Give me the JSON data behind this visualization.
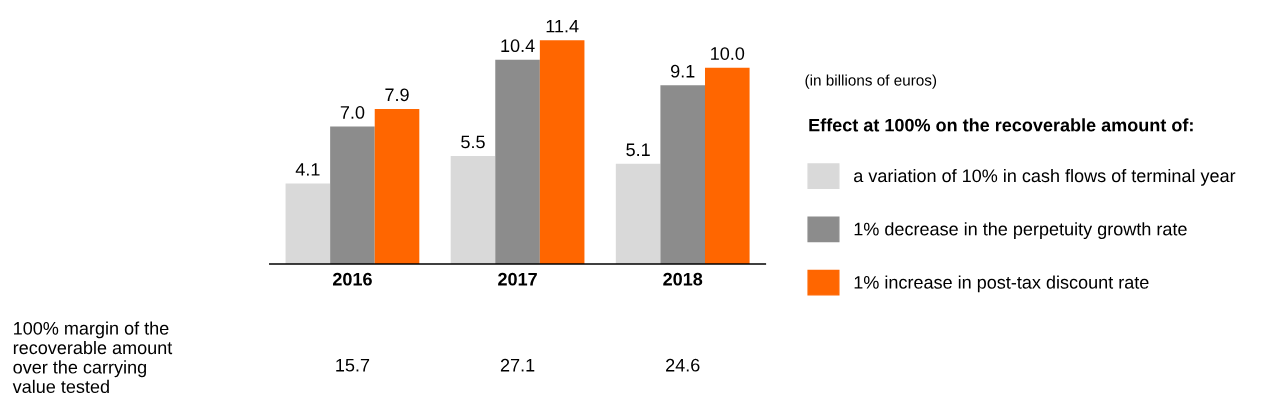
{
  "chart_data": {
    "type": "bar",
    "categories": [
      "2016",
      "2017",
      "2018"
    ],
    "series": [
      {
        "name": "a variation of 10% in cash flows of terminal year",
        "color": "#d9d9d9",
        "values": [
          4.1,
          5.5,
          5.1
        ],
        "value_labels": [
          "4.1",
          "5.5",
          "5.1"
        ]
      },
      {
        "name": "1% decrease in the perpetuity growth rate",
        "color": "#8c8c8c",
        "values": [
          7.0,
          10.4,
          9.1
        ],
        "value_labels": [
          "7.0",
          "10.4",
          "9.1"
        ]
      },
      {
        "name": "1% increase in post-tax discount rate",
        "color": "#ff6600",
        "values": [
          7.9,
          11.4,
          10.0
        ],
        "value_labels": [
          "7.9",
          "11.4",
          "10.0"
        ]
      }
    ],
    "grid": false,
    "legend": "right",
    "tick_labels": "x",
    "legend_title": "Effect at 100% on the recoverable amount of:",
    "annotations": [
      "(in billions of euros)",
      "100% margin of the\nrecoverable amount\nover the carrying\nvalue tested",
      "15.7",
      "27.1",
      "24.6"
    ]
  }
}
